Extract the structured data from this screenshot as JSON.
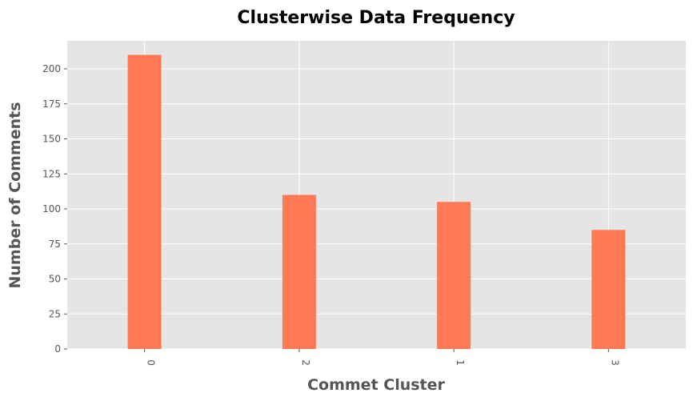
{
  "chart_data": {
    "type": "bar",
    "title": "Clusterwise Data Frequency",
    "xlabel": "Commet Cluster",
    "ylabel": "Number of Comments",
    "categories": [
      "0",
      "2",
      "1",
      "3"
    ],
    "values": [
      210,
      110,
      105,
      85
    ],
    "ylim": [
      0,
      220
    ],
    "yticks": [
      0,
      25,
      50,
      75,
      100,
      125,
      150,
      175,
      200
    ],
    "grid": true,
    "legend": "none",
    "colors": {
      "bar": "#ff7a54",
      "background": "#e5e5e5",
      "grid": "#ffffff"
    }
  }
}
